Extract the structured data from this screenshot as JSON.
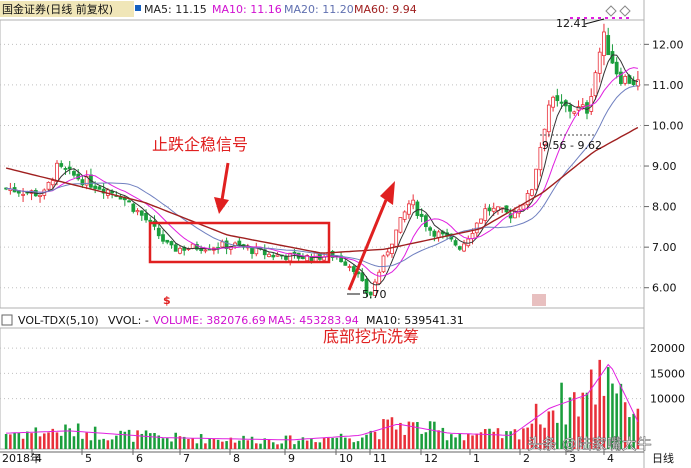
{
  "header": {
    "stock": "国金证券(日线 前复权)",
    "ma5": "MA5: 11.15",
    "ma10": "MA10: 11.16",
    "ma20": "MA20: 11.20",
    "ma60": "MA60: 9.94"
  },
  "vol_header": {
    "label": "VOL-TDX(5,10)",
    "vvol": "VVOL: -",
    "volume": "VOLUME: 382076.69",
    "ma5": "MA5: 453283.94",
    "ma10": "MA10: 539541.31"
  },
  "annotations": {
    "stabilize": "止跌企稳信号",
    "pit": "底部挖坑洗筹",
    "high_label": "12.41",
    "low_label": "5.70",
    "range_label": "9.56 - 9.62"
  },
  "x_axis": {
    "year": "2018年",
    "months": [
      "4",
      "5",
      "6",
      "7",
      "8",
      "9",
      "10",
      "11",
      "12",
      "1",
      "2",
      "3",
      "4"
    ],
    "period": "日线"
  },
  "watermark": "头条 @陆家嘴大牛",
  "colors": {
    "up": "#e8303a",
    "down": "#1a9e3c",
    "ma5": "#333333",
    "ma10": "#e020e0",
    "ma20": "#7080c0",
    "ma60": "#a02020",
    "grid": "#c0c0c0",
    "box": "#e02020"
  },
  "chart_data": {
    "type": "candlestick",
    "price_axis": {
      "ticks": [
        6.0,
        7.0,
        8.0,
        9.0,
        10.0,
        11.0,
        12.0
      ],
      "range": [
        5.5,
        12.6
      ]
    },
    "volume_axis": {
      "ticks": [
        10000,
        15000,
        20000
      ],
      "range": [
        0,
        24000
      ]
    },
    "price_keypoints": [
      {
        "t": 0,
        "p": 8.45
      },
      {
        "t": 0.06,
        "p": 8.3
      },
      {
        "t": 0.08,
        "p": 8.95
      },
      {
        "t": 0.13,
        "p": 8.6
      },
      {
        "t": 0.18,
        "p": 8.3
      },
      {
        "t": 0.22,
        "p": 7.7
      },
      {
        "t": 0.26,
        "p": 6.95
      },
      {
        "t": 0.3,
        "p": 7.0
      },
      {
        "t": 0.36,
        "p": 7.05
      },
      {
        "t": 0.42,
        "p": 6.8
      },
      {
        "t": 0.48,
        "p": 6.75
      },
      {
        "t": 0.52,
        "p": 6.8
      },
      {
        "t": 0.55,
        "p": 6.5
      },
      {
        "t": 0.575,
        "p": 5.75
      },
      {
        "t": 0.6,
        "p": 6.8
      },
      {
        "t": 0.64,
        "p": 8.15
      },
      {
        "t": 0.67,
        "p": 7.45
      },
      {
        "t": 0.72,
        "p": 7.0
      },
      {
        "t": 0.76,
        "p": 7.95
      },
      {
        "t": 0.8,
        "p": 7.8
      },
      {
        "t": 0.83,
        "p": 8.3
      },
      {
        "t": 0.86,
        "p": 10.6
      },
      {
        "t": 0.89,
        "p": 10.4
      },
      {
        "t": 0.92,
        "p": 10.4
      },
      {
        "t": 0.945,
        "p": 12.2
      },
      {
        "t": 0.97,
        "p": 11.2
      },
      {
        "t": 1,
        "p": 11.05
      }
    ],
    "ma60_keypoints": [
      {
        "t": 0,
        "p": 8.95
      },
      {
        "t": 0.22,
        "p": 8.1
      },
      {
        "t": 0.35,
        "p": 7.3
      },
      {
        "t": 0.5,
        "p": 6.85
      },
      {
        "t": 0.6,
        "p": 6.95
      },
      {
        "t": 0.75,
        "p": 7.45
      },
      {
        "t": 0.85,
        "p": 8.35
      },
      {
        "t": 0.93,
        "p": 9.35
      },
      {
        "t": 1,
        "p": 9.95
      }
    ],
    "volume_keypoints": [
      {
        "t": 0,
        "v": 3500
      },
      {
        "t": 0.1,
        "v": 4000
      },
      {
        "t": 0.25,
        "v": 2500
      },
      {
        "t": 0.45,
        "v": 2000
      },
      {
        "t": 0.56,
        "v": 3000
      },
      {
        "t": 0.62,
        "v": 5500
      },
      {
        "t": 0.7,
        "v": 3500
      },
      {
        "t": 0.8,
        "v": 3000
      },
      {
        "t": 0.86,
        "v": 9000
      },
      {
        "t": 0.92,
        "v": 12000
      },
      {
        "t": 0.955,
        "v": 19000
      },
      {
        "t": 1,
        "v": 6000
      }
    ]
  }
}
